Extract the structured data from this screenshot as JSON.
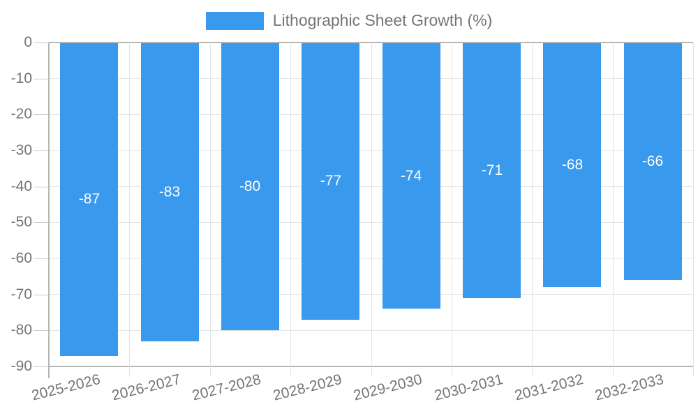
{
  "chart_data": {
    "type": "bar",
    "title": "",
    "legend": {
      "position": "top",
      "label": "Lithographic Sheet Growth (%)"
    },
    "categories": [
      "2025-2026",
      "2026-2027",
      "2027-2028",
      "2028-2029",
      "2029-2030",
      "2030-2031",
      "2031-2032",
      "2032-2033"
    ],
    "series": [
      {
        "name": "Lithographic Sheet Growth (%)",
        "values": [
          -87,
          -83,
          -80,
          -77,
          -74,
          -71,
          -68,
          -66
        ]
      }
    ],
    "value_labels": [
      "-87",
      "-83",
      "-80",
      "-77",
      "-74",
      "-71",
      "-68",
      "-66"
    ],
    "xlabel": "",
    "ylabel": "",
    "ylim": [
      -90,
      0
    ],
    "y_ticks": [
      0,
      -10,
      -20,
      -30,
      -40,
      -50,
      -60,
      -70,
      -80,
      -90
    ],
    "y_tick_labels": [
      "0",
      "-10",
      "-20",
      "-30",
      "-40",
      "-50",
      "-60",
      "-70",
      "-80",
      "-90"
    ],
    "grid": {
      "horizontal": true,
      "vertical": true
    },
    "x_tick_rotation_deg": -14
  },
  "colors": {
    "bar": "#3999ec",
    "value_label": "#ffffff",
    "axis_text": "#757575",
    "grid_minor": "#e3e3e3",
    "grid_major": "#b5b5b5",
    "background": "#ffffff"
  }
}
